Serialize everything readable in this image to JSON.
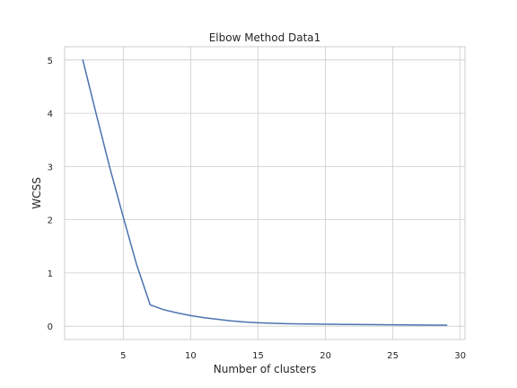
{
  "chart_data": {
    "type": "line",
    "title": "Elbow Method Data1",
    "xlabel": "Number of clusters",
    "ylabel": "WCSS",
    "xlim": [
      0.65,
      30.35
    ],
    "ylim": [
      -0.25,
      5.25
    ],
    "xticks": [
      5,
      10,
      15,
      20,
      25,
      30
    ],
    "yticks": [
      0,
      1,
      2,
      3,
      4,
      5
    ],
    "grid": true,
    "series": [
      {
        "color": "#4c72b0",
        "x": [
          2,
          3,
          4,
          5,
          6,
          7,
          8,
          9,
          10,
          11,
          12,
          13,
          14,
          15,
          16,
          17,
          18,
          19,
          20,
          21,
          22,
          23,
          24,
          25,
          26,
          27,
          28,
          29
        ],
        "y": [
          5.0,
          3.98,
          2.98,
          2.05,
          1.15,
          0.4,
          0.31,
          0.25,
          0.2,
          0.16,
          0.13,
          0.1,
          0.08,
          0.065,
          0.055,
          0.048,
          0.043,
          0.04,
          0.037,
          0.034,
          0.032,
          0.03,
          0.028,
          0.026,
          0.024,
          0.022,
          0.021,
          0.02
        ]
      }
    ]
  }
}
